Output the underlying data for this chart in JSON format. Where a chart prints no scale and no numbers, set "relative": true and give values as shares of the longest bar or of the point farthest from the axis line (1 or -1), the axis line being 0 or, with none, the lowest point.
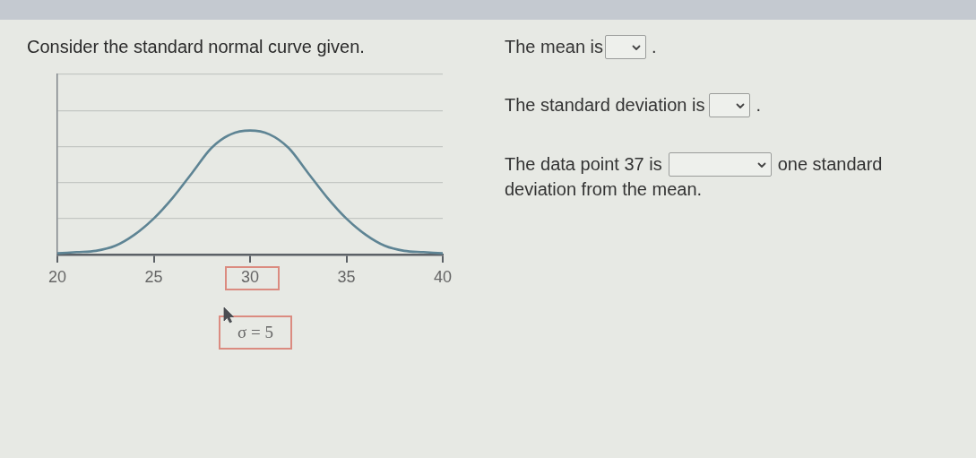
{
  "chart_data": {
    "type": "line",
    "title": "Consider the standard normal curve given.",
    "x": [
      20,
      21,
      22,
      23,
      24,
      25,
      26,
      27,
      28,
      29,
      30,
      31,
      32,
      33,
      34,
      35,
      36,
      37,
      38,
      39,
      40
    ],
    "series": [
      {
        "color": "#5e8494",
        "values": [
          0.01,
          0.02,
          0.03,
          0.07,
          0.16,
          0.29,
          0.46,
          0.66,
          0.86,
          0.97,
          1,
          0.97,
          0.86,
          0.66,
          0.46,
          0.29,
          0.16,
          0.07,
          0.03,
          0.02,
          0.01
        ]
      }
    ],
    "relative": true,
    "xlim": [
      20,
      40
    ],
    "xticks": [
      20,
      25,
      30,
      35,
      40
    ],
    "grid": "y",
    "marker": "none",
    "line_style": "solid",
    "annotations": [
      "The mean is",
      ".",
      "The standard deviation is",
      ".",
      "The data point 37 is",
      "one standard",
      "deviation from the mean.",
      "σ = 5"
    ]
  }
}
